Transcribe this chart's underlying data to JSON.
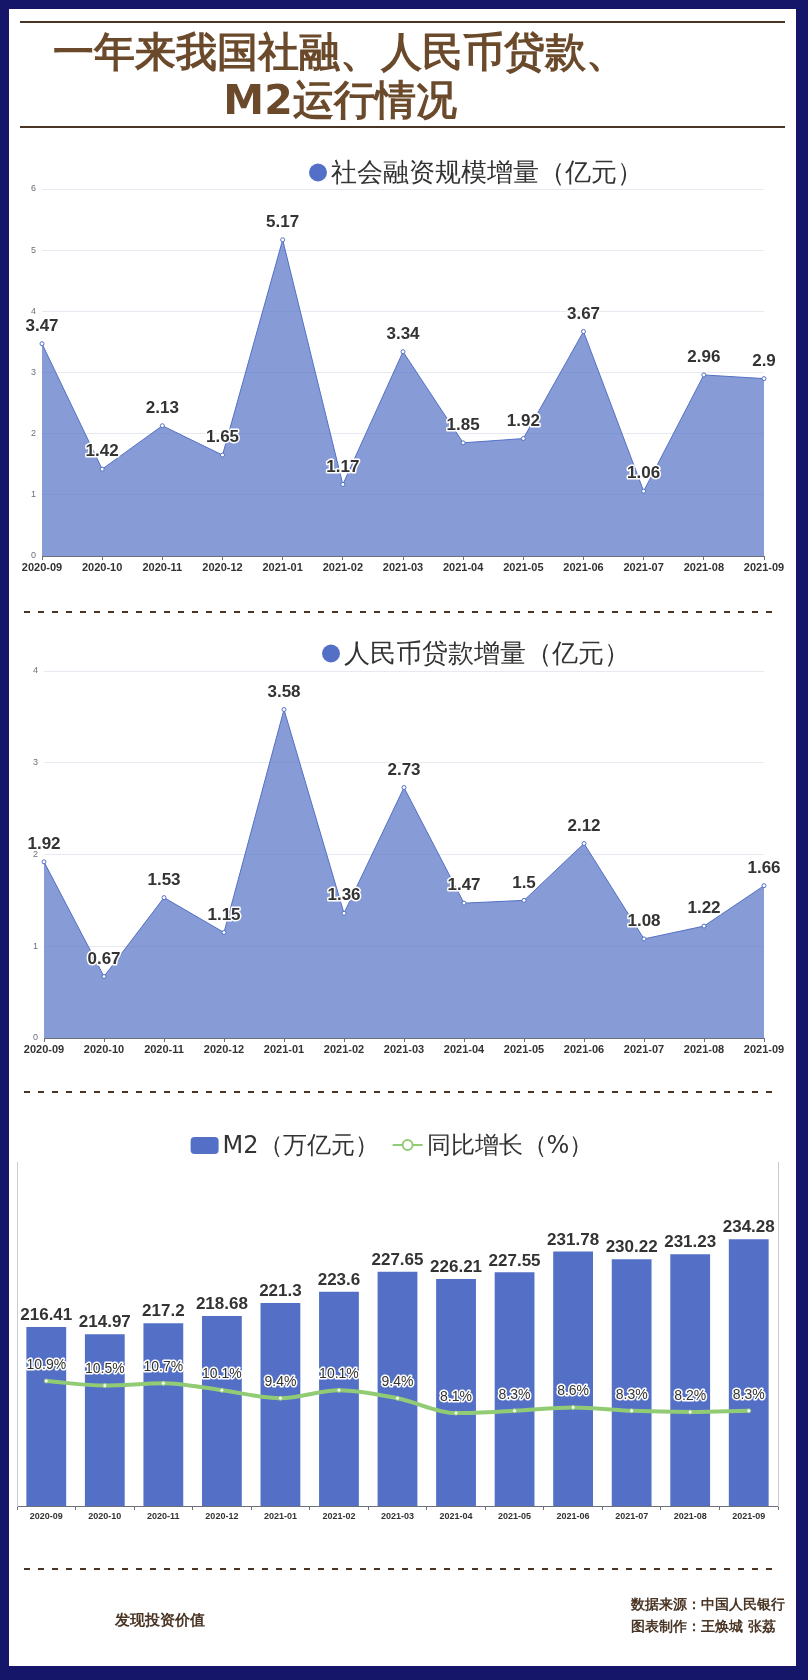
{
  "chart_data": [
    {
      "type": "area",
      "title": "一年来我国社融、人民币贷款、M2运行情况",
      "categories": [
        "2020-09",
        "2020-10",
        "2020-11",
        "2020-12",
        "2021-01",
        "2021-02",
        "2021-03",
        "2021-04",
        "2021-05",
        "2021-06",
        "2021-07",
        "2021-08",
        "2021-09"
      ],
      "series": [
        {
          "name": "社会融资规模增量（亿元）",
          "color": "#5470c6",
          "values": [
            3.47,
            1.42,
            2.13,
            1.65,
            5.17,
            1.17,
            3.34,
            1.85,
            1.92,
            3.67,
            1.06,
            2.96,
            2.9
          ]
        }
      ],
      "ylim": [
        0,
        6
      ],
      "yticks": [
        0,
        1,
        2,
        3,
        4,
        5,
        6
      ],
      "grid": "y",
      "legend": "top",
      "marker": "circle",
      "data_labels": true
    },
    {
      "type": "area",
      "categories": [
        "2020-09",
        "2020-10",
        "2020-11",
        "2020-12",
        "2021-01",
        "2021-02",
        "2021-03",
        "2021-04",
        "2021-05",
        "2021-06",
        "2021-07",
        "2021-08",
        "2021-09"
      ],
      "series": [
        {
          "name": "人民币贷款增量（亿元）",
          "color": "#5470c6",
          "values": [
            1.92,
            0.67,
            1.53,
            1.15,
            3.58,
            1.36,
            2.73,
            1.47,
            1.5,
            2.12,
            1.08,
            1.22,
            1.66
          ]
        }
      ],
      "ylim": [
        0,
        4
      ],
      "yticks": [
        0,
        1,
        2,
        3,
        4
      ],
      "grid": "y",
      "legend": "top",
      "marker": "circle",
      "data_labels": true
    },
    {
      "type": "bar",
      "categories": [
        "2020-09",
        "2020-10",
        "2020-11",
        "2020-12",
        "2021-01",
        "2021-02",
        "2021-03",
        "2021-04",
        "2021-05",
        "2021-06",
        "2021-07",
        "2021-08",
        "2021-09"
      ],
      "series": [
        {
          "name": "M2（万亿元）",
          "color": "#5470c6",
          "values": [
            216.41,
            214.97,
            217.2,
            218.68,
            221.3,
            223.6,
            227.65,
            226.21,
            227.55,
            231.78,
            230.22,
            231.23,
            234.28
          ]
        },
        {
          "name": "同比增长（%）",
          "type": "line",
          "axis": "y2",
          "color": "#91cc75",
          "values": [
            10.9,
            10.5,
            10.7,
            10.1,
            9.4,
            10.1,
            9.4,
            8.1,
            8.3,
            8.6,
            8.3,
            8.2,
            8.3
          ],
          "value_labels": [
            "10.9%",
            "10.5%",
            "10.7%",
            "10.1%",
            "9.4%",
            "10.1%",
            "9.4%",
            "8.1%",
            "8.3%",
            "8.6%",
            "8.3%",
            "8.2%",
            "8.3%"
          ]
        }
      ],
      "ylim": [
        180,
        250
      ],
      "y2lim": [
        0,
        30
      ],
      "tick_labels": "x",
      "legend": "top",
      "marker": "circle",
      "data_labels": true,
      "annotations": [
        "发现投资价值",
        "数据来源：中国人民银行",
        "图表制作：王焕城 张荔"
      ]
    }
  ]
}
